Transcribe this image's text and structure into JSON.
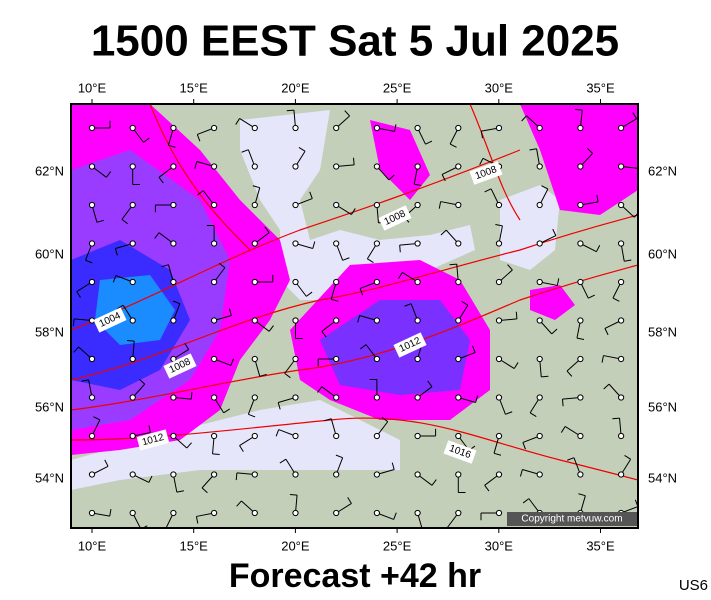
{
  "header": {
    "title": "1500 EEST Sat 5 Jul 2025"
  },
  "map": {
    "lon_labels_top": [
      "10°E",
      "15°E",
      "20°E",
      "25°E",
      "30°E",
      "35°E"
    ],
    "lon_labels_bottom": [
      "10°E",
      "15°E",
      "20°E",
      "25°E",
      "30°E",
      "35°E"
    ],
    "lat_labels_left": [
      "62°N",
      "60°N",
      "58°N",
      "56°N",
      "54°N"
    ],
    "lat_labels_right": [
      "62°N",
      "60°N",
      "58°N",
      "56°N",
      "54°N"
    ],
    "isobar_labels": [
      "1008",
      "1008",
      "1004",
      "1008",
      "1012",
      "1012",
      "1016"
    ],
    "copyright": "Copyright metvuw.com"
  },
  "footer": {
    "forecast": "Forecast +42 hr",
    "code": "US6"
  }
}
